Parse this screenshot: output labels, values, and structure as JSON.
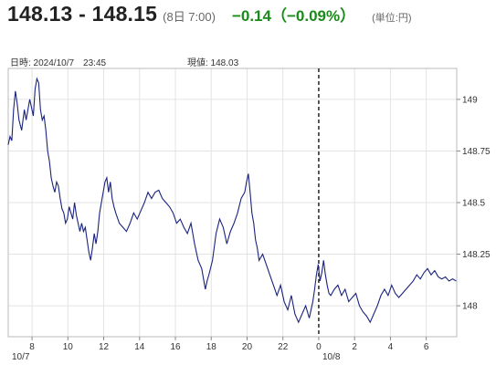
{
  "quote": {
    "bid_ask": "148.13 - 148.15",
    "time": "(8日 7:00)",
    "change": "−0.14（−0.09%）",
    "unit": "(単位:円)",
    "change_color": "#1a8a1a"
  },
  "meta": {
    "datetime": "日時: 2024/10/7　23:45",
    "current": "現値: 148.03"
  },
  "chart_data": {
    "type": "line",
    "x_unit": "hours since 10/7 06:40",
    "xlim": [
      0,
      25.03
    ],
    "ylim": [
      147.85,
      149.15
    ],
    "yticks": [
      148,
      148.25,
      148.5,
      148.75,
      149
    ],
    "ytick_labels": [
      "148",
      "148.25",
      "148.5",
      "148.75",
      "149"
    ],
    "xticks": [
      {
        "x": 1.33,
        "label": "8"
      },
      {
        "x": 3.33,
        "label": "10"
      },
      {
        "x": 5.33,
        "label": "12"
      },
      {
        "x": 7.33,
        "label": "14"
      },
      {
        "x": 9.33,
        "label": "16"
      },
      {
        "x": 11.33,
        "label": "18"
      },
      {
        "x": 13.33,
        "label": "20"
      },
      {
        "x": 15.33,
        "label": "22"
      },
      {
        "x": 17.33,
        "label": "0"
      },
      {
        "x": 19.33,
        "label": "2"
      },
      {
        "x": 21.33,
        "label": "4"
      },
      {
        "x": 23.33,
        "label": "6"
      }
    ],
    "date_labels": [
      {
        "x": 0,
        "label": "10/7"
      },
      {
        "x": 17.33,
        "label": "10/8"
      }
    ],
    "day_divider_x": 17.33,
    "grid": true,
    "line_color": "#1a237e",
    "series": [
      {
        "values": [
          [
            0.0,
            148.78
          ],
          [
            0.1,
            148.82
          ],
          [
            0.2,
            148.8
          ],
          [
            0.3,
            148.95
          ],
          [
            0.4,
            149.04
          ],
          [
            0.5,
            148.98
          ],
          [
            0.6,
            148.9
          ],
          [
            0.75,
            148.85
          ],
          [
            0.9,
            148.95
          ],
          [
            1.0,
            148.9
          ],
          [
            1.2,
            149.0
          ],
          [
            1.4,
            148.92
          ],
          [
            1.5,
            149.05
          ],
          [
            1.6,
            149.1
          ],
          [
            1.7,
            149.08
          ],
          [
            1.8,
            148.95
          ],
          [
            1.9,
            148.9
          ],
          [
            2.0,
            148.92
          ],
          [
            2.1,
            148.85
          ],
          [
            2.2,
            148.75
          ],
          [
            2.3,
            148.7
          ],
          [
            2.4,
            148.62
          ],
          [
            2.5,
            148.58
          ],
          [
            2.6,
            148.55
          ],
          [
            2.7,
            148.6
          ],
          [
            2.8,
            148.58
          ],
          [
            2.9,
            148.52
          ],
          [
            3.0,
            148.47
          ],
          [
            3.1,
            148.45
          ],
          [
            3.2,
            148.4
          ],
          [
            3.3,
            148.42
          ],
          [
            3.4,
            148.48
          ],
          [
            3.5,
            148.45
          ],
          [
            3.6,
            148.42
          ],
          [
            3.7,
            148.5
          ],
          [
            3.8,
            148.44
          ],
          [
            3.9,
            148.4
          ],
          [
            4.0,
            148.36
          ],
          [
            4.1,
            148.4
          ],
          [
            4.2,
            148.36
          ],
          [
            4.3,
            148.38
          ],
          [
            4.4,
            148.32
          ],
          [
            4.5,
            148.26
          ],
          [
            4.6,
            148.22
          ],
          [
            4.7,
            148.28
          ],
          [
            4.8,
            148.35
          ],
          [
            4.9,
            148.3
          ],
          [
            5.0,
            148.36
          ],
          [
            5.1,
            148.45
          ],
          [
            5.2,
            148.5
          ],
          [
            5.3,
            148.55
          ],
          [
            5.4,
            148.6
          ],
          [
            5.5,
            148.62
          ],
          [
            5.6,
            148.55
          ],
          [
            5.7,
            148.6
          ],
          [
            5.8,
            148.52
          ],
          [
            5.9,
            148.48
          ],
          [
            6.0,
            148.45
          ],
          [
            6.2,
            148.4
          ],
          [
            6.4,
            148.38
          ],
          [
            6.6,
            148.36
          ],
          [
            6.8,
            148.4
          ],
          [
            7.0,
            148.45
          ],
          [
            7.2,
            148.42
          ],
          [
            7.4,
            148.46
          ],
          [
            7.6,
            148.5
          ],
          [
            7.8,
            148.55
          ],
          [
            8.0,
            148.52
          ],
          [
            8.2,
            148.55
          ],
          [
            8.4,
            148.56
          ],
          [
            8.6,
            148.52
          ],
          [
            8.8,
            148.5
          ],
          [
            9.0,
            148.48
          ],
          [
            9.2,
            148.45
          ],
          [
            9.4,
            148.4
          ],
          [
            9.6,
            148.42
          ],
          [
            9.8,
            148.38
          ],
          [
            10.0,
            148.35
          ],
          [
            10.2,
            148.4
          ],
          [
            10.4,
            148.3
          ],
          [
            10.6,
            148.22
          ],
          [
            10.8,
            148.18
          ],
          [
            11.0,
            148.08
          ],
          [
            11.1,
            148.12
          ],
          [
            11.2,
            148.15
          ],
          [
            11.4,
            148.22
          ],
          [
            11.6,
            148.35
          ],
          [
            11.8,
            148.42
          ],
          [
            12.0,
            148.38
          ],
          [
            12.2,
            148.3
          ],
          [
            12.4,
            148.36
          ],
          [
            12.6,
            148.4
          ],
          [
            12.8,
            148.45
          ],
          [
            13.0,
            148.52
          ],
          [
            13.2,
            148.55
          ],
          [
            13.3,
            148.6
          ],
          [
            13.4,
            148.64
          ],
          [
            13.5,
            148.55
          ],
          [
            13.6,
            148.45
          ],
          [
            13.7,
            148.4
          ],
          [
            13.8,
            148.32
          ],
          [
            13.9,
            148.28
          ],
          [
            14.0,
            148.22
          ],
          [
            14.2,
            148.25
          ],
          [
            14.4,
            148.2
          ],
          [
            14.6,
            148.15
          ],
          [
            14.8,
            148.1
          ],
          [
            15.0,
            148.05
          ],
          [
            15.2,
            148.1
          ],
          [
            15.4,
            148.02
          ],
          [
            15.6,
            147.98
          ],
          [
            15.8,
            148.05
          ],
          [
            16.0,
            147.96
          ],
          [
            16.2,
            147.92
          ],
          [
            16.4,
            147.96
          ],
          [
            16.6,
            148.0
          ],
          [
            16.8,
            147.94
          ],
          [
            17.0,
            148.02
          ],
          [
            17.1,
            148.08
          ],
          [
            17.2,
            148.15
          ],
          [
            17.3,
            148.2
          ],
          [
            17.4,
            148.12
          ],
          [
            17.5,
            148.16
          ],
          [
            17.6,
            148.22
          ],
          [
            17.7,
            148.15
          ],
          [
            17.8,
            148.1
          ],
          [
            17.9,
            148.06
          ],
          [
            18.0,
            148.05
          ],
          [
            18.2,
            148.08
          ],
          [
            18.4,
            148.1
          ],
          [
            18.6,
            148.05
          ],
          [
            18.8,
            148.08
          ],
          [
            19.0,
            148.02
          ],
          [
            19.2,
            148.04
          ],
          [
            19.4,
            148.06
          ],
          [
            19.6,
            148.0
          ],
          [
            19.8,
            147.97
          ],
          [
            20.0,
            147.95
          ],
          [
            20.2,
            147.92
          ],
          [
            20.4,
            147.96
          ],
          [
            20.6,
            148.0
          ],
          [
            20.8,
            148.05
          ],
          [
            21.0,
            148.08
          ],
          [
            21.2,
            148.05
          ],
          [
            21.4,
            148.1
          ],
          [
            21.6,
            148.06
          ],
          [
            21.8,
            148.04
          ],
          [
            22.0,
            148.06
          ],
          [
            22.2,
            148.08
          ],
          [
            22.4,
            148.1
          ],
          [
            22.6,
            148.12
          ],
          [
            22.8,
            148.15
          ],
          [
            23.0,
            148.13
          ],
          [
            23.2,
            148.16
          ],
          [
            23.4,
            148.18
          ],
          [
            23.6,
            148.15
          ],
          [
            23.8,
            148.17
          ],
          [
            24.0,
            148.14
          ],
          [
            24.2,
            148.13
          ],
          [
            24.4,
            148.14
          ],
          [
            24.6,
            148.12
          ],
          [
            24.8,
            148.13
          ],
          [
            25.0,
            148.12
          ]
        ]
      }
    ]
  }
}
